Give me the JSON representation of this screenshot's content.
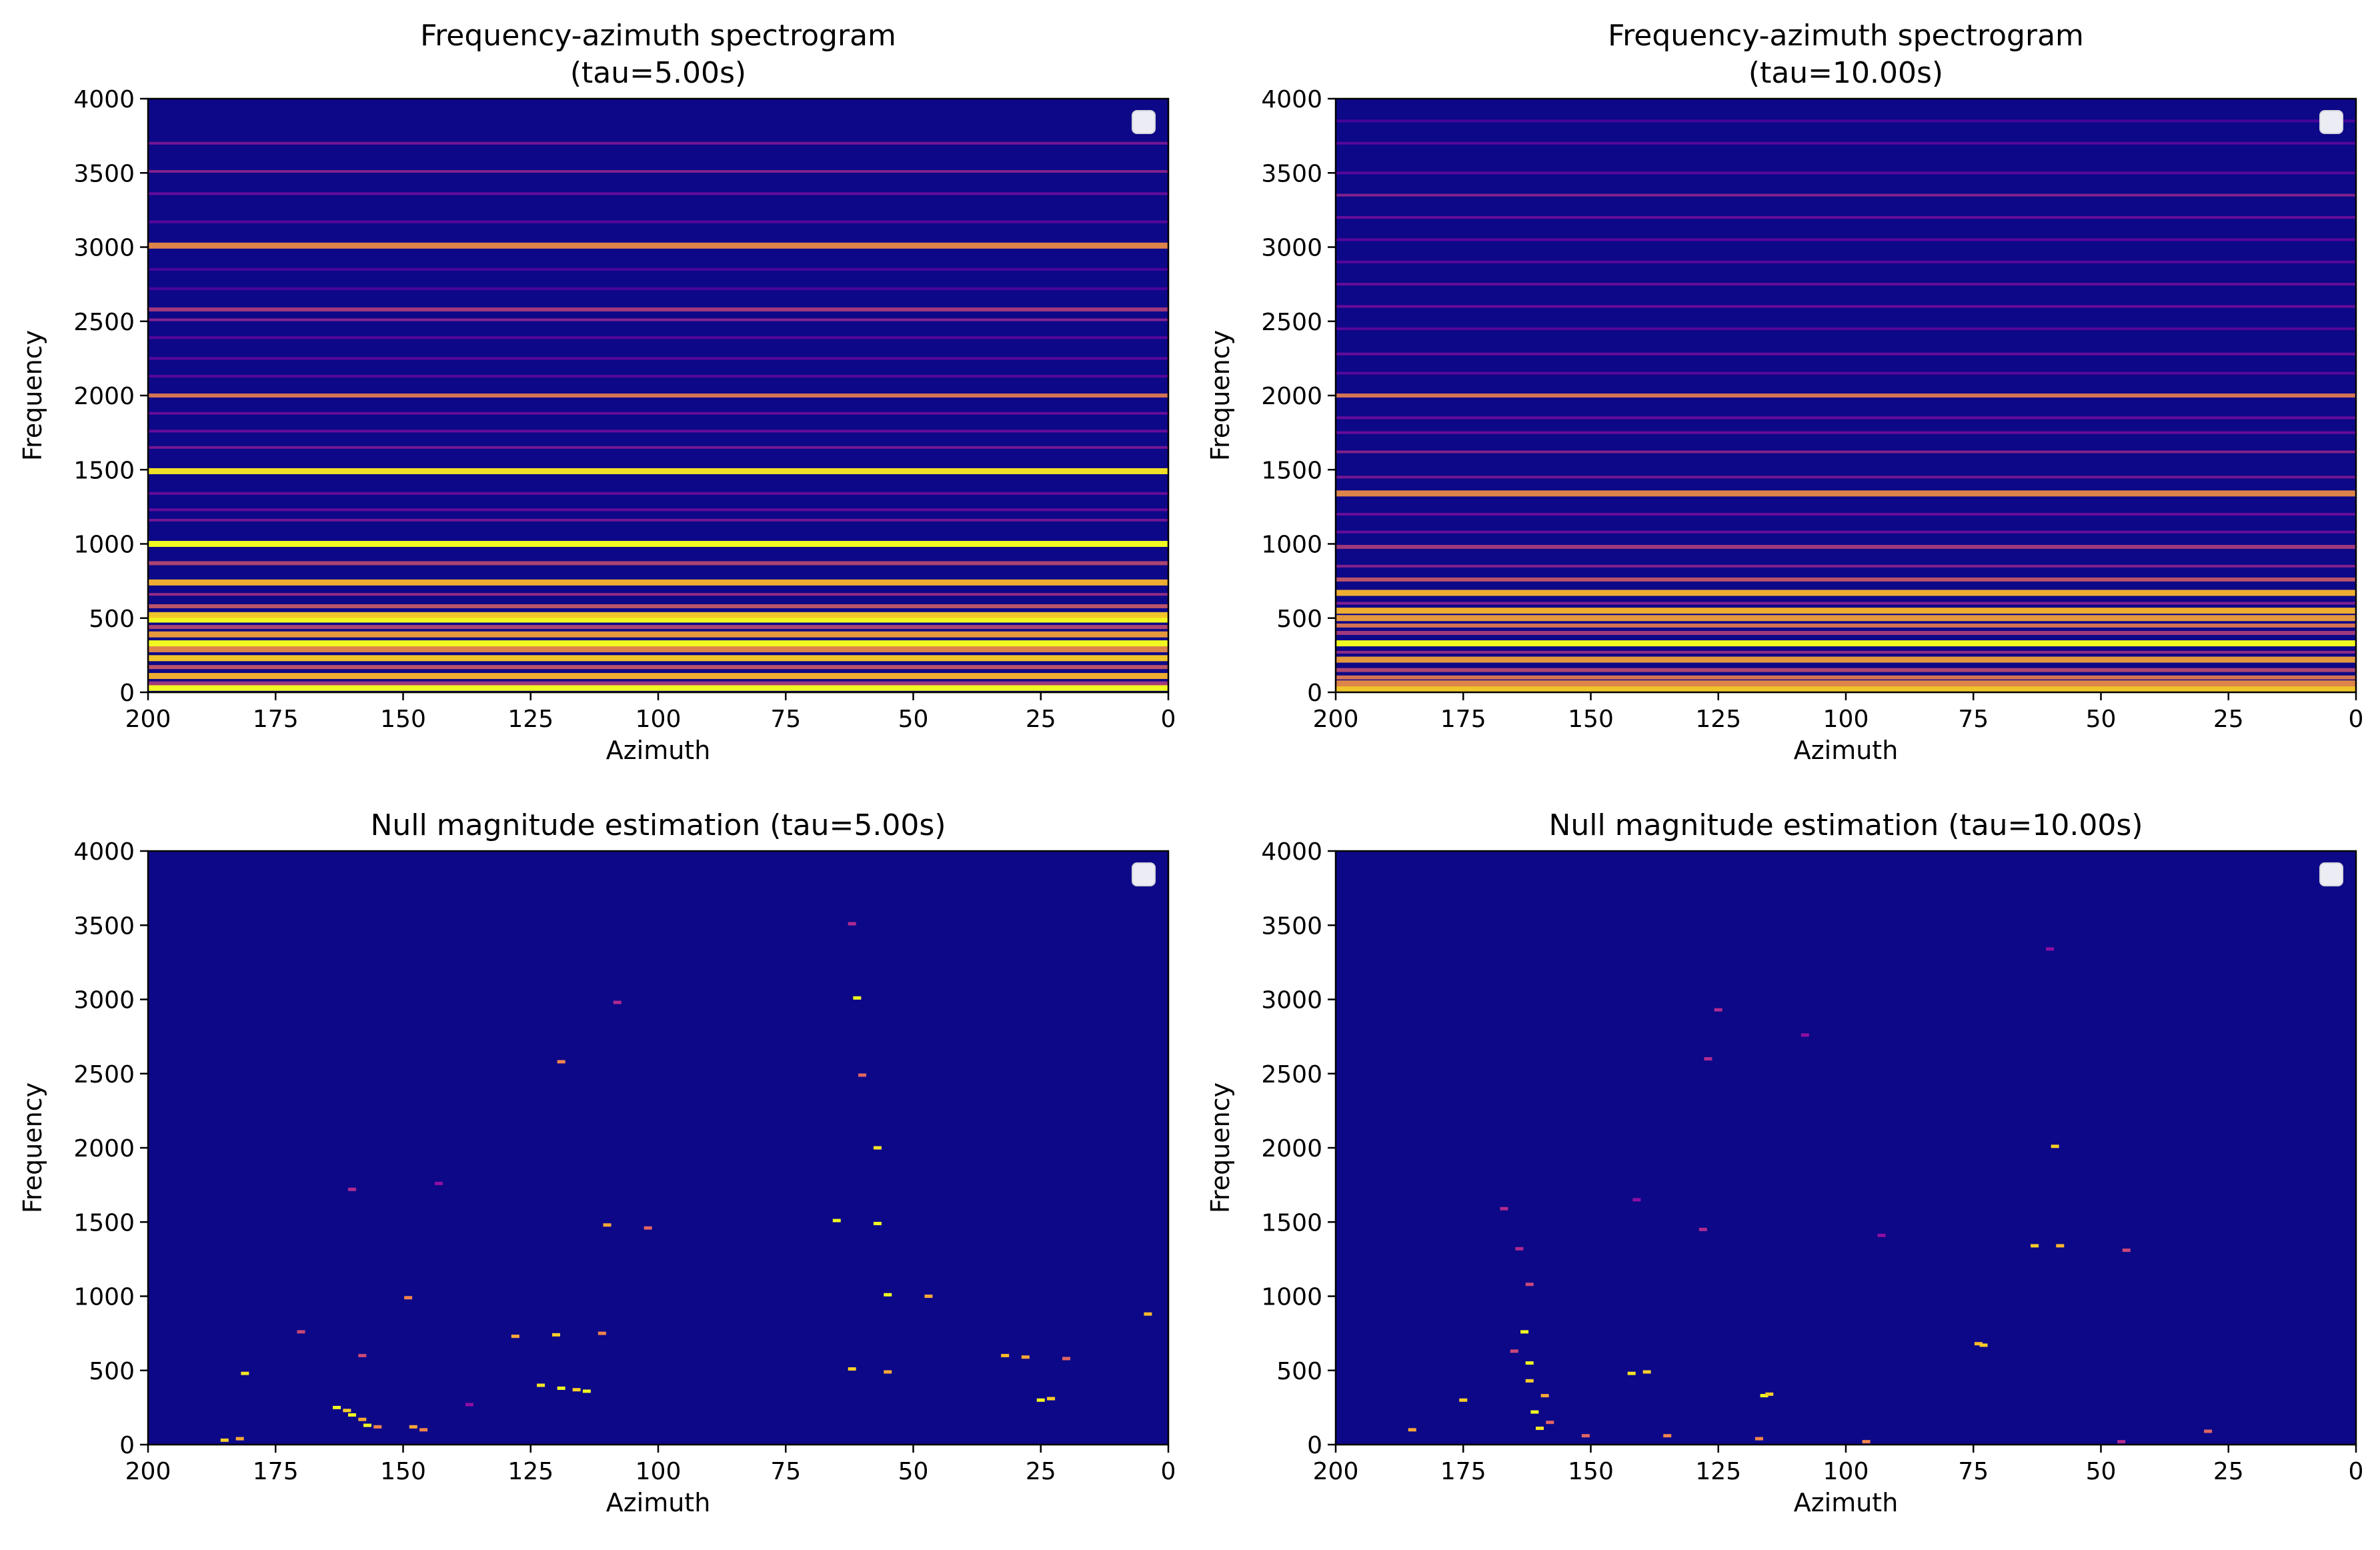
{
  "chart_data": [
    {
      "type": "heatmap",
      "title": "Frequency-azimuth spectrogram\n(tau=5.00s)",
      "xlabel": "Azimuth",
      "ylabel": "Frequency",
      "xlim": [
        200,
        0
      ],
      "ylim": [
        0,
        4000
      ],
      "xticks": [
        200,
        175,
        150,
        125,
        100,
        75,
        50,
        25,
        0
      ],
      "yticks": [
        0,
        500,
        1000,
        1500,
        2000,
        2500,
        3000,
        3500,
        4000
      ],
      "colormap": "plasma",
      "background_color": "#0d0887",
      "legend": "top-right",
      "bands": [
        {
          "f": 30,
          "i": 1.0
        },
        {
          "f": 60,
          "i": 0.5
        },
        {
          "f": 110,
          "i": 0.85
        },
        {
          "f": 170,
          "i": 0.6
        },
        {
          "f": 230,
          "i": 0.9
        },
        {
          "f": 290,
          "i": 0.75
        },
        {
          "f": 330,
          "i": 1.0
        },
        {
          "f": 390,
          "i": 0.8
        },
        {
          "f": 440,
          "i": 0.55
        },
        {
          "f": 490,
          "i": 1.0
        },
        {
          "f": 520,
          "i": 0.9
        },
        {
          "f": 580,
          "i": 0.6
        },
        {
          "f": 660,
          "i": 0.45
        },
        {
          "f": 740,
          "i": 0.85
        },
        {
          "f": 870,
          "i": 0.55
        },
        {
          "f": 1000,
          "i": 1.0
        },
        {
          "f": 1160,
          "i": 0.35
        },
        {
          "f": 1230,
          "i": 0.3
        },
        {
          "f": 1340,
          "i": 0.3
        },
        {
          "f": 1490,
          "i": 0.95
        },
        {
          "f": 1650,
          "i": 0.35
        },
        {
          "f": 1760,
          "i": 0.3
        },
        {
          "f": 1880,
          "i": 0.3
        },
        {
          "f": 2000,
          "i": 0.7
        },
        {
          "f": 2130,
          "i": 0.25
        },
        {
          "f": 2250,
          "i": 0.25
        },
        {
          "f": 2390,
          "i": 0.25
        },
        {
          "f": 2510,
          "i": 0.4
        },
        {
          "f": 2580,
          "i": 0.5
        },
        {
          "f": 2720,
          "i": 0.2
        },
        {
          "f": 2850,
          "i": 0.2
        },
        {
          "f": 3010,
          "i": 0.75
        },
        {
          "f": 3170,
          "i": 0.25
        },
        {
          "f": 3360,
          "i": 0.3
        },
        {
          "f": 3510,
          "i": 0.4
        },
        {
          "f": 3700,
          "i": 0.35
        }
      ]
    },
    {
      "type": "heatmap",
      "title": "Frequency-azimuth spectrogram\n(tau=10.00s)",
      "xlabel": "Azimuth",
      "ylabel": "Frequency",
      "xlim": [
        200,
        0
      ],
      "ylim": [
        0,
        4000
      ],
      "xticks": [
        200,
        175,
        150,
        125,
        100,
        75,
        50,
        25,
        0
      ],
      "yticks": [
        0,
        500,
        1000,
        1500,
        2000,
        2500,
        3000,
        3500,
        4000
      ],
      "colormap": "plasma",
      "background_color": "#0d0887",
      "legend": "top-right",
      "bands": [
        {
          "f": 20,
          "i": 0.9
        },
        {
          "f": 60,
          "i": 0.75
        },
        {
          "f": 100,
          "i": 0.7
        },
        {
          "f": 150,
          "i": 0.55
        },
        {
          "f": 220,
          "i": 0.8
        },
        {
          "f": 270,
          "i": 0.45
        },
        {
          "f": 330,
          "i": 1.0
        },
        {
          "f": 400,
          "i": 0.5
        },
        {
          "f": 450,
          "i": 0.7
        },
        {
          "f": 500,
          "i": 0.8
        },
        {
          "f": 550,
          "i": 0.85
        },
        {
          "f": 600,
          "i": 0.4
        },
        {
          "f": 670,
          "i": 0.85
        },
        {
          "f": 760,
          "i": 0.6
        },
        {
          "f": 850,
          "i": 0.4
        },
        {
          "f": 980,
          "i": 0.5
        },
        {
          "f": 1080,
          "i": 0.3
        },
        {
          "f": 1200,
          "i": 0.3
        },
        {
          "f": 1340,
          "i": 0.75
        },
        {
          "f": 1450,
          "i": 0.35
        },
        {
          "f": 1620,
          "i": 0.4
        },
        {
          "f": 1750,
          "i": 0.3
        },
        {
          "f": 1850,
          "i": 0.3
        },
        {
          "f": 2000,
          "i": 0.7
        },
        {
          "f": 2150,
          "i": 0.25
        },
        {
          "f": 2280,
          "i": 0.3
        },
        {
          "f": 2450,
          "i": 0.25
        },
        {
          "f": 2600,
          "i": 0.3
        },
        {
          "f": 2750,
          "i": 0.3
        },
        {
          "f": 2900,
          "i": 0.25
        },
        {
          "f": 3050,
          "i": 0.25
        },
        {
          "f": 3200,
          "i": 0.3
        },
        {
          "f": 3350,
          "i": 0.4
        },
        {
          "f": 3500,
          "i": 0.25
        },
        {
          "f": 3700,
          "i": 0.25
        },
        {
          "f": 3850,
          "i": 0.2
        }
      ]
    },
    {
      "type": "heatmap",
      "title": "Null magnitude estimation (tau=5.00s)",
      "xlabel": "Azimuth",
      "ylabel": "Frequency",
      "xlim": [
        200,
        0
      ],
      "ylim": [
        0,
        4000
      ],
      "xticks": [
        200,
        175,
        150,
        125,
        100,
        75,
        50,
        25,
        0
      ],
      "yticks": [
        0,
        500,
        1000,
        1500,
        2000,
        2500,
        3000,
        3500,
        4000
      ],
      "colormap": "plasma",
      "background_color": "#0d0887",
      "legend": "top-right",
      "points": [
        [
          185,
          30,
          0.9
        ],
        [
          182,
          40,
          0.8
        ],
        [
          181,
          480,
          0.95
        ],
        [
          170,
          760,
          0.5
        ],
        [
          163,
          250,
          1.0
        ],
        [
          161,
          230,
          0.9
        ],
        [
          160,
          200,
          1.0
        ],
        [
          158,
          170,
          0.8
        ],
        [
          157,
          130,
          1.0
        ],
        [
          155,
          120,
          0.7
        ],
        [
          158,
          600,
          0.5
        ],
        [
          160,
          1720,
          0.4
        ],
        [
          148,
          120,
          0.8
        ],
        [
          146,
          100,
          0.7
        ],
        [
          149,
          990,
          0.7
        ],
        [
          143,
          1760,
          0.3
        ],
        [
          128,
          730,
          0.8
        ],
        [
          123,
          400,
          0.95
        ],
        [
          120,
          740,
          0.9
        ],
        [
          119,
          380,
          1.0
        ],
        [
          116,
          370,
          0.9
        ],
        [
          114,
          360,
          1.0
        ],
        [
          119,
          2580,
          0.7
        ],
        [
          111,
          750,
          0.7
        ],
        [
          110,
          1480,
          0.8
        ],
        [
          102,
          1460,
          0.6
        ],
        [
          108,
          2980,
          0.4
        ],
        [
          65,
          1510,
          1.0
        ],
        [
          62,
          510,
          0.9
        ],
        [
          61,
          3010,
          1.0
        ],
        [
          60,
          2490,
          0.6
        ],
        [
          57,
          2000,
          0.95
        ],
        [
          57,
          1490,
          1.0
        ],
        [
          55,
          490,
          0.8
        ],
        [
          55,
          1010,
          1.0
        ],
        [
          47,
          1000,
          0.8
        ],
        [
          32,
          600,
          0.85
        ],
        [
          28,
          590,
          0.8
        ],
        [
          25,
          300,
          1.0
        ],
        [
          23,
          310,
          0.9
        ],
        [
          20,
          580,
          0.6
        ],
        [
          4,
          880,
          0.85
        ],
        [
          62,
          3510,
          0.4
        ],
        [
          137,
          270,
          0.3
        ]
      ]
    },
    {
      "type": "heatmap",
      "title": "Null magnitude estimation (tau=10.00s)",
      "xlabel": "Azimuth",
      "ylabel": "Frequency",
      "xlim": [
        200,
        0
      ],
      "ylim": [
        0,
        4000
      ],
      "xticks": [
        200,
        175,
        150,
        125,
        100,
        75,
        50,
        25,
        0
      ],
      "yticks": [
        0,
        500,
        1000,
        1500,
        2000,
        2500,
        3000,
        3500,
        4000
      ],
      "colormap": "plasma",
      "background_color": "#0d0887",
      "legend": "top-right",
      "points": [
        [
          185,
          100,
          0.8
        ],
        [
          175,
          300,
          0.9
        ],
        [
          167,
          1590,
          0.4
        ],
        [
          165,
          630,
          0.5
        ],
        [
          163,
          760,
          1.0
        ],
        [
          162,
          550,
          1.0
        ],
        [
          162,
          430,
          0.9
        ],
        [
          161,
          220,
          1.0
        ],
        [
          160,
          110,
          0.95
        ],
        [
          159,
          330,
          0.8
        ],
        [
          158,
          150,
          0.6
        ],
        [
          162,
          1080,
          0.5
        ],
        [
          164,
          1320,
          0.4
        ],
        [
          151,
          60,
          0.6
        ],
        [
          142,
          480,
          0.95
        ],
        [
          139,
          490,
          0.9
        ],
        [
          141,
          1650,
          0.3
        ],
        [
          135,
          60,
          0.7
        ],
        [
          128,
          1450,
          0.4
        ],
        [
          127,
          2600,
          0.4
        ],
        [
          125,
          2930,
          0.4
        ],
        [
          117,
          40,
          0.7
        ],
        [
          116,
          330,
          1.0
        ],
        [
          115,
          340,
          0.9
        ],
        [
          108,
          2760,
          0.3
        ],
        [
          96,
          20,
          0.7
        ],
        [
          93,
          1410,
          0.3
        ],
        [
          74,
          680,
          0.85
        ],
        [
          73,
          670,
          0.9
        ],
        [
          63,
          1340,
          0.9
        ],
        [
          59,
          2010,
          0.9
        ],
        [
          58,
          1340,
          0.85
        ],
        [
          45,
          1310,
          0.5
        ],
        [
          46,
          20,
          0.4
        ],
        [
          29,
          90,
          0.6
        ],
        [
          60,
          3340,
          0.3
        ]
      ]
    }
  ]
}
